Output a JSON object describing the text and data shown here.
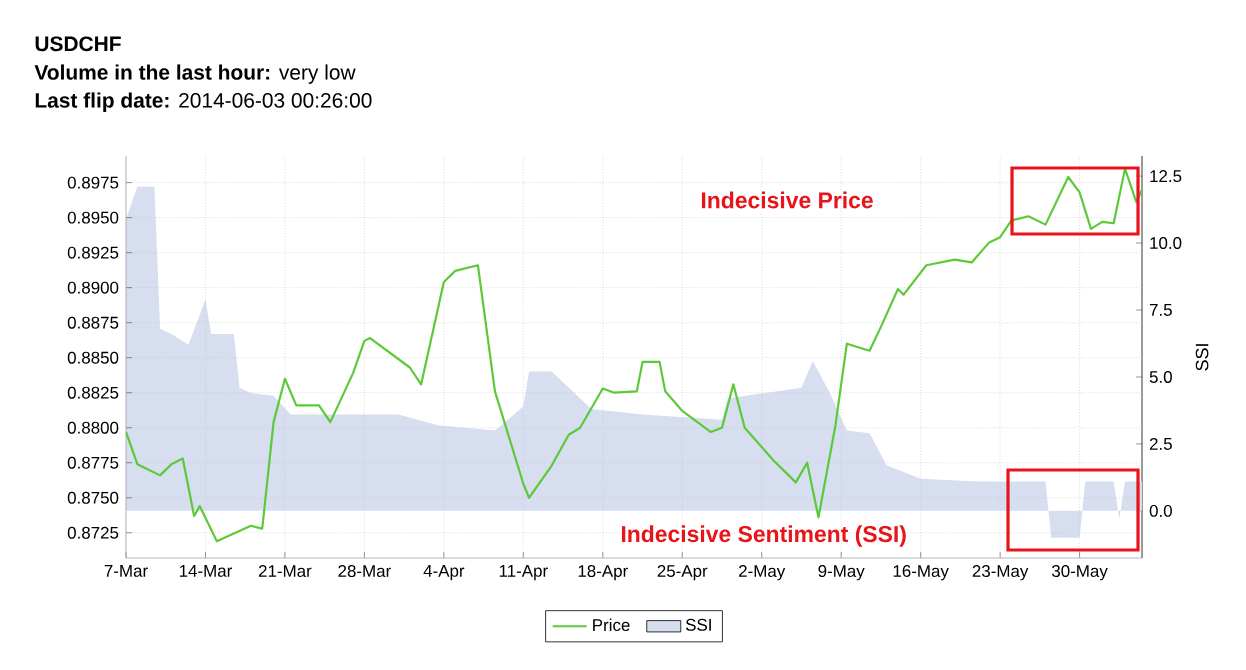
{
  "chart_data": {
    "type": "line",
    "title": "USDCHF",
    "subtitle": "**Volume in the last hour:** very low",
    "annotations": [
      "**Last flip date:** 2014-06-03 00:26:00",
      "Indecisive Price",
      "Indecisive Sentiment (SSI)"
    ],
    "y2label": "SSI",
    "xlim": [
      "2014-03-07",
      "2014-06-04T12:00"
    ],
    "xticks": [
      {
        "value": "2014-03-07",
        "label": "7-Mar"
      },
      {
        "value": "2014-03-14",
        "label": "14-Mar"
      },
      {
        "value": "2014-03-21",
        "label": "21-Mar"
      },
      {
        "value": "2014-03-28",
        "label": "28-Mar"
      },
      {
        "value": "2014-04-04",
        "label": "4-Apr"
      },
      {
        "value": "2014-04-11",
        "label": "11-Apr"
      },
      {
        "value": "2014-04-18",
        "label": "18-Apr"
      },
      {
        "value": "2014-04-25",
        "label": "25-Apr"
      },
      {
        "value": "2014-05-02",
        "label": "2-May"
      },
      {
        "value": "2014-05-09",
        "label": "9-May"
      },
      {
        "value": "2014-05-16",
        "label": "16-May"
      },
      {
        "value": "2014-05-23",
        "label": "23-May"
      },
      {
        "value": "2014-05-30",
        "label": "30-May"
      }
    ],
    "ylim": [
      0.8707,
      0.8994
    ],
    "yticks": [
      0.8725,
      {
        "value": 0.875,
        "label": "0.8750"
      },
      0.8775,
      {
        "value": 0.88,
        "label": "0.8800"
      },
      0.8825,
      {
        "value": 0.885,
        "label": "0.8850"
      },
      0.8875,
      {
        "value": 0.89,
        "label": "0.8900"
      },
      0.8925,
      {
        "value": 0.895,
        "label": "0.8950"
      },
      0.8975
    ],
    "y2lim": [
      -1.76,
      13.25
    ],
    "y2ticks": [
      {
        "value": 0,
        "label": "0.0"
      },
      2.5,
      {
        "value": 5,
        "label": "5.0"
      },
      7.5,
      {
        "value": 10,
        "label": "10.0"
      },
      12.5
    ],
    "grid": true,
    "legend": "bottom",
    "series": [
      {
        "name": "Price",
        "color": "#5cc93a",
        "x": [
          "2014-03-07",
          "2014-03-08",
          "2014-03-10",
          "2014-03-11",
          "2014-03-12",
          "2014-03-13",
          "2014-03-13T12:00",
          "2014-03-15",
          "2014-03-18",
          "2014-03-19",
          "2014-03-20",
          "2014-03-21",
          "2014-03-22",
          "2014-03-24",
          "2014-03-25",
          "2014-03-27",
          "2014-03-28",
          "2014-03-28T12:00",
          "2014-04-01",
          "2014-04-02",
          "2014-04-04",
          "2014-04-05",
          "2014-04-07",
          "2014-04-08T12:00",
          "2014-04-11",
          "2014-04-11T12:00",
          "2014-04-13T12:00",
          "2014-04-15",
          "2014-04-16",
          "2014-04-18",
          "2014-04-19",
          "2014-04-21",
          "2014-04-21T12:00",
          "2014-04-23",
          "2014-04-23T12:00",
          "2014-04-25",
          "2014-04-27T12:00",
          "2014-04-28T12:00",
          "2014-04-29T12:00",
          "2014-04-30T12:00",
          "2014-05-03",
          "2014-05-05",
          "2014-05-06",
          "2014-05-07",
          "2014-05-08T12:00",
          "2014-05-09T12:00",
          "2014-05-11T12:00",
          "2014-05-12T12:00",
          "2014-05-14",
          "2014-05-14T12:00",
          "2014-05-16T12:00",
          "2014-05-19",
          "2014-05-20T12:00",
          "2014-05-22",
          "2014-05-23",
          "2014-05-24",
          "2014-05-25T12:00",
          "2014-05-27",
          "2014-05-29",
          "2014-05-30",
          "2014-05-31",
          "2014-06-01",
          "2014-06-02",
          "2014-06-03",
          "2014-06-04",
          "2014-06-04T12:00"
        ],
        "values": [
          0.8797,
          0.8774,
          0.8766,
          0.8774,
          0.8778,
          0.8737,
          0.8744,
          0.8719,
          0.873,
          0.8728,
          0.8804,
          0.8835,
          0.8816,
          0.8816,
          0.8804,
          0.8839,
          0.8862,
          0.8864,
          0.8843,
          0.8831,
          0.8904,
          0.8912,
          0.8916,
          0.8826,
          0.876,
          0.875,
          0.8773,
          0.8795,
          0.88,
          0.8828,
          0.8825,
          0.8826,
          0.8847,
          0.8847,
          0.8826,
          0.8812,
          0.8797,
          0.88,
          0.8831,
          0.88,
          0.8777,
          0.8761,
          0.8775,
          0.8736,
          0.8802,
          0.886,
          0.8855,
          0.8872,
          0.8899,
          0.8895,
          0.8916,
          0.892,
          0.8918,
          0.8932,
          0.8936,
          0.8948,
          0.8951,
          0.8945,
          0.8979,
          0.8968,
          0.8942,
          0.8947,
          0.8946,
          0.8985,
          0.8961,
          0.897
        ]
      },
      {
        "name": "SSI",
        "type": "area",
        "axis": "y2",
        "color": "#d6deef",
        "x": [
          "2014-03-07",
          "2014-03-08",
          "2014-03-09T12:00",
          "2014-03-10",
          "2014-03-11",
          "2014-03-12T12:00",
          "2014-03-14",
          "2014-03-14T12:00",
          "2014-03-16T12:00",
          "2014-03-17",
          "2014-03-18",
          "2014-03-20",
          "2014-03-21T12:00",
          "2014-03-27",
          "2014-03-31",
          "2014-04-03T12:00",
          "2014-04-08T12:00",
          "2014-04-11",
          "2014-04-11T12:00",
          "2014-04-13T12:00",
          "2014-04-15T12:00",
          "2014-04-17",
          "2014-04-21T12:00",
          "2014-04-28T12:00",
          "2014-04-29",
          "2014-05-05T12:00",
          "2014-05-06T12:00",
          "2014-05-08",
          "2014-05-09T12:00",
          "2014-05-11T12:00",
          "2014-05-13",
          "2014-05-16",
          "2014-05-21",
          "2014-05-27",
          "2014-05-27T12:00",
          "2014-05-30",
          "2014-05-30T12:00",
          "2014-06-02",
          "2014-06-02T12:00",
          "2014-06-03",
          "2014-06-04T12:00"
        ],
        "values": [
          10.9,
          12.1,
          12.1,
          6.8,
          6.6,
          6.2,
          7.9,
          6.6,
          6.6,
          4.6,
          4.4,
          4.3,
          3.6,
          3.6,
          3.6,
          3.2,
          3.0,
          3.9,
          5.2,
          5.2,
          4.4,
          3.8,
          3.6,
          3.4,
          4.2,
          4.6,
          5.6,
          4.4,
          3.0,
          2.9,
          1.7,
          1.2,
          1.1,
          1.1,
          -1.0,
          -1.0,
          1.1,
          1.1,
          -0.3,
          1.1,
          1.1
        ]
      }
    ]
  }
}
